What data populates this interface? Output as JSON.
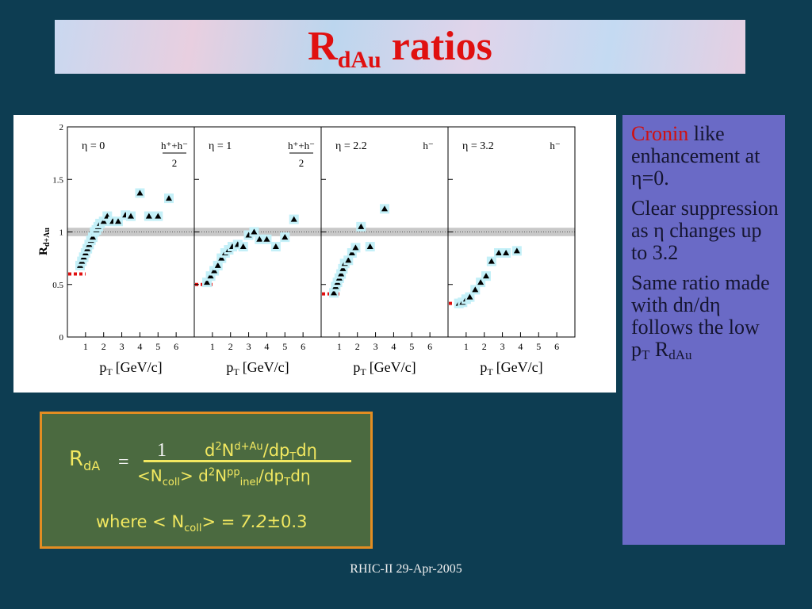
{
  "header": {
    "title_main": "R",
    "title_sub": "dAu",
    "title_rest": "ratios"
  },
  "chart_data": [
    {
      "type": "scatter",
      "eta_label": "η = 0",
      "species": "h⁺+h⁻",
      "species_denominator": "2",
      "y_label": "R",
      "y_label_sub": "d+Au",
      "x_label": "p",
      "x_label_sub": "T",
      "x_label_rest": "[GeV/c]",
      "x": [
        0.7,
        0.8,
        0.9,
        1.0,
        1.1,
        1.2,
        1.3,
        1.4,
        1.5,
        1.6,
        1.7,
        1.8,
        2.0,
        2.2,
        2.5,
        2.8,
        3.2,
        3.5,
        4.0,
        4.5,
        5.0,
        5.6
      ],
      "values": [
        0.68,
        0.72,
        0.76,
        0.8,
        0.84,
        0.88,
        0.92,
        0.95,
        1.0,
        1.02,
        1.05,
        1.08,
        1.1,
        1.15,
        1.1,
        1.1,
        1.16,
        1.15,
        1.37,
        1.15,
        1.15,
        1.32
      ],
      "ref_band": [
        0.96,
        1.04
      ],
      "ref_line": 1,
      "ncoll_level": 0.6,
      "xlim": [
        0,
        7
      ],
      "ylim": [
        0,
        2
      ],
      "xticks": [
        1,
        2,
        3,
        4,
        5,
        6
      ],
      "yticks": [
        0,
        0.5,
        1,
        1.5,
        2
      ]
    },
    {
      "type": "scatter",
      "eta_label": "η = 1",
      "species": "h⁺+h⁻",
      "species_denominator": "2",
      "x_label": "p",
      "x_label_sub": "T",
      "x_label_rest": "[GeV/c]",
      "x": [
        0.7,
        0.9,
        1.1,
        1.3,
        1.5,
        1.7,
        1.9,
        2.1,
        2.4,
        2.7,
        3.0,
        3.3,
        3.6,
        4.0,
        4.5,
        5.0,
        5.5
      ],
      "values": [
        0.52,
        0.58,
        0.63,
        0.68,
        0.75,
        0.8,
        0.83,
        0.86,
        0.88,
        0.86,
        0.97,
        1.0,
        0.93,
        0.93,
        0.86,
        0.95,
        1.12
      ],
      "ref_band": [
        0.96,
        1.04
      ],
      "ref_line": 1,
      "ncoll_level": 0.5,
      "xlim": [
        0,
        7
      ],
      "ylim": [
        0,
        2
      ],
      "xticks": [
        1,
        2,
        3,
        4,
        5,
        6
      ],
      "yticks": [
        0,
        0.5,
        1,
        1.5,
        2
      ]
    },
    {
      "type": "scatter",
      "eta_label": "η = 2.2",
      "species": "h⁻",
      "x_label": "p",
      "x_label_sub": "T",
      "x_label_rest": "[GeV/c]",
      "x": [
        0.7,
        0.8,
        0.9,
        1.0,
        1.1,
        1.2,
        1.3,
        1.5,
        1.7,
        1.9,
        2.2,
        2.7,
        3.5
      ],
      "values": [
        0.42,
        0.48,
        0.52,
        0.56,
        0.6,
        0.65,
        0.7,
        0.73,
        0.8,
        0.85,
        1.05,
        0.86,
        1.22
      ],
      "ref_band": [
        0.96,
        1.04
      ],
      "ref_line": 1,
      "ncoll_level": 0.41,
      "xlim": [
        0,
        7
      ],
      "ylim": [
        0,
        2
      ],
      "xticks": [
        1,
        2,
        3,
        4,
        5,
        6
      ],
      "yticks": [
        0,
        0.5,
        1,
        1.5,
        2
      ]
    },
    {
      "type": "scatter",
      "eta_label": "η = 3.2",
      "species": "h⁻",
      "x_label": "p",
      "x_label_sub": "T",
      "x_label_rest": "[GeV/c]",
      "x": [
        0.6,
        0.8,
        1.0,
        1.2,
        1.5,
        1.8,
        2.1,
        2.4,
        2.8,
        3.2,
        3.8
      ],
      "values": [
        0.32,
        0.33,
        0.36,
        0.38,
        0.45,
        0.52,
        0.58,
        0.72,
        0.8,
        0.8,
        0.82
      ],
      "ref_band": [
        0.96,
        1.04
      ],
      "ref_line": 1,
      "ncoll_level": 0.32,
      "xlim": [
        0,
        7
      ],
      "ylim": [
        0,
        2
      ],
      "xticks": [
        1,
        2,
        3,
        4,
        5,
        6
      ],
      "yticks": [
        0,
        0.5,
        1,
        1.5,
        2
      ]
    }
  ],
  "sidebar": [
    [
      {
        "highlight": "Cronin"
      },
      {
        "text": " like enhancement at η=0."
      }
    ],
    [
      {
        "text": "Clear suppression as η changes up to 3.2"
      }
    ],
    [
      {
        "text": "Same ratio made with dn/dη follows the low p"
      },
      {
        "sub": "T"
      },
      {
        "text": " R"
      },
      {
        "sub": "dAu"
      }
    ]
  ],
  "formula": {
    "lhs": [
      {
        "text": "R"
      },
      {
        "sub": "dA"
      }
    ],
    "equals": "=",
    "one": "1",
    "numerator": [
      {
        "text": "d"
      },
      {
        "sup": "2"
      },
      {
        "text": "N"
      },
      {
        "sup": "d+Au"
      },
      {
        "text": "/dp"
      },
      {
        "sub": "T"
      },
      {
        "text": "dη"
      }
    ],
    "denominator": [
      {
        "text": "<N"
      },
      {
        "sub": "coll"
      },
      {
        "text": "> d"
      },
      {
        "sup": "2"
      },
      {
        "text": "N"
      },
      {
        "sup": "pp"
      },
      {
        "sub": "inel"
      },
      {
        "text": "/dp"
      },
      {
        "sub": "T"
      },
      {
        "text": "dη"
      }
    ],
    "where": [
      {
        "text": "where  < N"
      },
      {
        "sub": "coll"
      },
      {
        "text": "> = "
      },
      {
        "em": "7.2"
      },
      {
        "text": "±0.3"
      }
    ]
  },
  "footer": "RHIC-II 29-Apr-2005"
}
